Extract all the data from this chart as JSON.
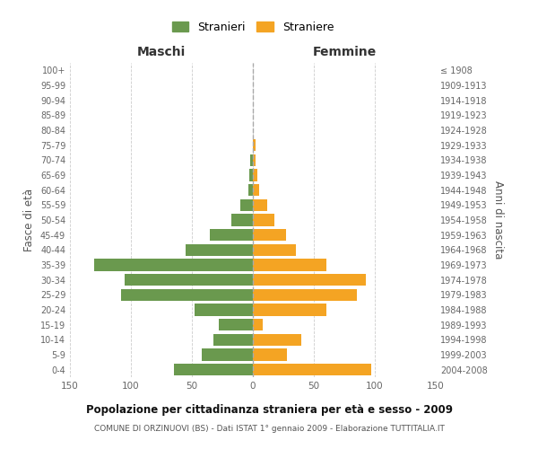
{
  "age_groups": [
    "0-4",
    "5-9",
    "10-14",
    "15-19",
    "20-24",
    "25-29",
    "30-34",
    "35-39",
    "40-44",
    "45-49",
    "50-54",
    "55-59",
    "60-64",
    "65-69",
    "70-74",
    "75-79",
    "80-84",
    "85-89",
    "90-94",
    "95-99",
    "100+"
  ],
  "birth_years": [
    "2004-2008",
    "1999-2003",
    "1994-1998",
    "1989-1993",
    "1984-1988",
    "1979-1983",
    "1974-1978",
    "1969-1973",
    "1964-1968",
    "1959-1963",
    "1954-1958",
    "1949-1953",
    "1944-1948",
    "1939-1943",
    "1934-1938",
    "1929-1933",
    "1924-1928",
    "1919-1923",
    "1914-1918",
    "1909-1913",
    "≤ 1908"
  ],
  "males": [
    65,
    42,
    32,
    28,
    48,
    108,
    105,
    130,
    55,
    35,
    18,
    10,
    4,
    3,
    2,
    0,
    0,
    0,
    0,
    0,
    0
  ],
  "females": [
    97,
    28,
    40,
    8,
    60,
    85,
    93,
    60,
    35,
    27,
    18,
    12,
    5,
    4,
    2,
    2,
    0,
    0,
    0,
    0,
    0
  ],
  "male_color": "#6a994e",
  "female_color": "#f4a423",
  "background_color": "#ffffff",
  "grid_color": "#cccccc",
  "title": "Popolazione per cittadinanza straniera per età e sesso - 2009",
  "subtitle": "COMUNE DI ORZINUOVI (BS) - Dati ISTAT 1° gennaio 2009 - Elaborazione TUTTITALIA.IT",
  "ylabel_left": "Fasce di età",
  "ylabel_right": "Anni di nascita",
  "xlabel_left": "Maschi",
  "xlabel_right": "Femmine",
  "legend_male": "Stranieri",
  "legend_female": "Straniere",
  "xlim": 150
}
